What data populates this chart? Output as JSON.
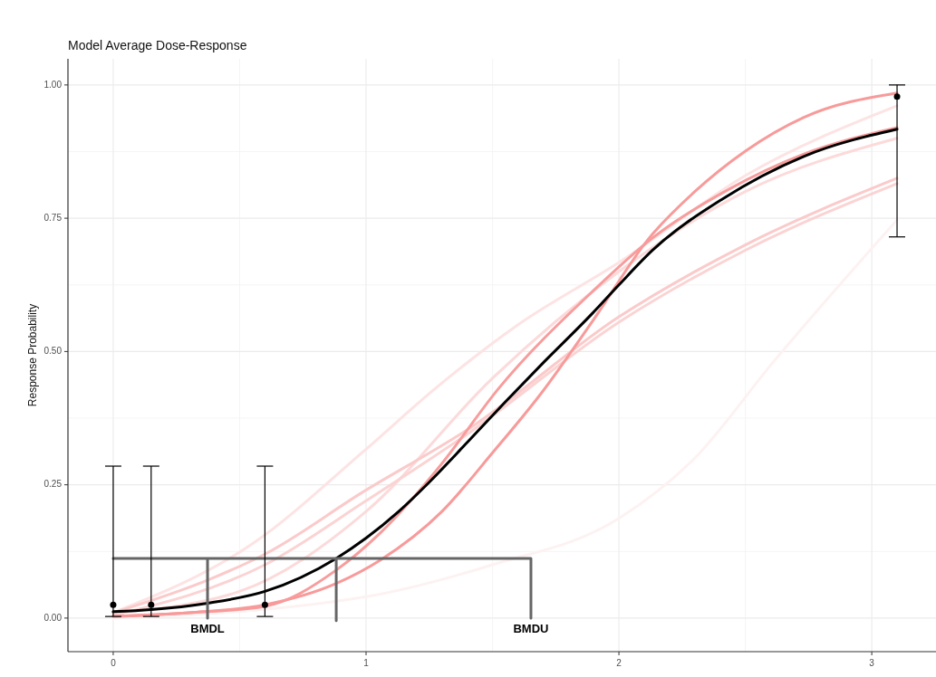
{
  "chart_data": {
    "type": "line",
    "title": "Model Average Dose-Response",
    "ylabel": "Response Probability",
    "xlim": [
      -0.179,
      3.254
    ],
    "ylim": [
      -0.063,
      1.049
    ],
    "xticks": [
      0,
      1,
      2,
      3
    ],
    "yticks": [
      {
        "value": 0,
        "label": "0.00"
      },
      {
        "value": 0.25,
        "label": "0.25"
      },
      {
        "value": 0.5,
        "label": "0.50"
      },
      {
        "value": 0.75,
        "label": "0.75"
      },
      {
        "value": 1,
        "label": "1.00"
      }
    ],
    "grid": true,
    "series": [
      {
        "color": "#fdf2f2",
        "x": [
          0,
          1.0,
          1.5,
          2.0,
          2.3,
          2.61,
          3.1
        ],
        "values": [
          0,
          0.04,
          0.1,
          0.187,
          0.3,
          0.48,
          0.747
        ]
      },
      {
        "color": "#fde3e3",
        "x": [
          0,
          0.556,
          0.986,
          1.272,
          1.6,
          2.0,
          2.5,
          3.1
        ],
        "values": [
          0.01,
          0.141,
          0.311,
          0.43,
          0.55,
          0.667,
          0.83,
          0.961
        ]
      },
      {
        "color": "#fcdada",
        "x": [
          0,
          0.5,
          1.0,
          1.5,
          2.0,
          2.5,
          3.1
        ],
        "values": [
          0.01,
          0.05,
          0.2,
          0.45,
          0.65,
          0.8,
          0.9
        ]
      },
      {
        "color": "#fbd3d3",
        "x": [
          0,
          0.6,
          1.0,
          1.4,
          2.0,
          2.5,
          3.1
        ],
        "values": [
          0.005,
          0.1,
          0.22,
          0.345,
          0.555,
          0.69,
          0.815
        ]
      },
      {
        "color": "#fbcaca",
        "x": [
          0,
          0.383,
          0.6,
          0.986,
          1.416,
          2.0,
          2.5,
          3.1
        ],
        "values": [
          0.01,
          0.073,
          0.12,
          0.236,
          0.358,
          0.565,
          0.7,
          0.825
        ]
      },
      {
        "color": "#f89c9c",
        "x": [
          0,
          0.3,
          0.6,
          0.882,
          1.057,
          1.3,
          1.523,
          1.892,
          2.133,
          2.43,
          2.73,
          3.1
        ],
        "values": [
          0.003,
          0.01,
          0.022,
          0.09,
          0.16,
          0.29,
          0.43,
          0.611,
          0.713,
          0.803,
          0.87,
          0.92
        ]
      },
      {
        "color": "#f89a9a",
        "x": [
          0,
          0.3,
          0.6,
          0.882,
          1.057,
          1.3,
          1.5,
          1.69,
          1.9,
          2.12,
          2.3,
          2.5,
          2.73,
          3.1
        ],
        "values": [
          0.003,
          0.01,
          0.025,
          0.065,
          0.109,
          0.2,
          0.31,
          0.42,
          0.56,
          0.713,
          0.8,
          0.876,
          0.939,
          0.985
        ]
      },
      {
        "color": "#000000",
        "x": [
          0,
          0.15,
          0.373,
          0.6,
          0.882,
          1.0,
          1.129,
          1.25,
          1.401,
          1.55,
          1.703,
          1.892,
          2.0,
          2.133,
          2.409,
          2.731,
          3.1
        ],
        "values": [
          0.012,
          0.016,
          0.028,
          0.05,
          0.112,
          0.15,
          0.2,
          0.255,
          0.33,
          0.405,
          0.48,
          0.57,
          0.625,
          0.69,
          0.786,
          0.866,
          0.917
        ]
      },
      {
        "color": "#666666",
        "x": [
          0,
          1.652,
          1.652,
          null,
          0.373,
          0.373,
          null,
          0.882,
          0.882
        ],
        "values": [
          0.112,
          0.112,
          0,
          null,
          0.112,
          0,
          null,
          0.112,
          -0.005
        ]
      },
      {
        "type": "scatter",
        "color": "#000000",
        "marker": "circle",
        "x": [
          0,
          0.15,
          0.6,
          3.1
        ],
        "values": [
          0.025,
          0.025,
          0.025,
          0.978
        ],
        "errors": [
          [
            0.003,
            0.285
          ],
          [
            0.003,
            0.285
          ],
          [
            0.003,
            0.285
          ],
          [
            0.715,
            1.0
          ]
        ]
      }
    ],
    "annotations": [
      {
        "text": "BMDL",
        "x": 0.373,
        "y": 0
      },
      {
        "text": "BMDU",
        "x": 1.652,
        "y": 0
      }
    ]
  }
}
